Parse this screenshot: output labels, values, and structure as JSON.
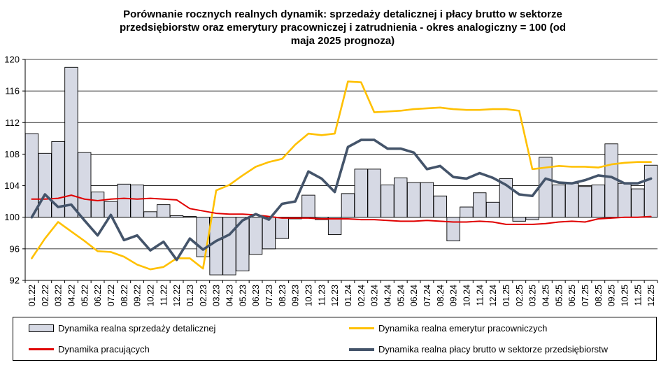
{
  "chart_data": {
    "type": "bar",
    "title": "Porównanie rocznych realnych dynamik: sprzedaży detalicznej i płacy brutto w sektorze przedsiębiorstw oraz emerytury pracowniczej i zatrudnienia - okres analogiczny = 100 (od maja 2025 prognoza)",
    "title_lines": [
      "Porównanie rocznych realnych dynamik: sprzedaży detalicznej i płacy brutto w sektorze",
      "przedsiębiorstw oraz emerytury pracowniczej i zatrudnienia - okres analogiczny = 100 (od",
      "maja 2025 prognoza)"
    ],
    "xlabel": "",
    "ylabel": "",
    "ylim": [
      92,
      120
    ],
    "yticks": [
      92,
      96,
      100,
      104,
      108,
      112,
      116,
      120
    ],
    "grid": true,
    "legend_position": "bottom",
    "categories": [
      "01.22",
      "02.22",
      "03.22",
      "04.22",
      "05.22",
      "06.22",
      "07.22",
      "08.22",
      "09.22",
      "10.22",
      "11.22",
      "12.22",
      "01.23",
      "02.23",
      "03.23",
      "04.23",
      "05.23",
      "06.23",
      "07.23",
      "08.23",
      "09.23",
      "10.23",
      "11.23",
      "12.23",
      "01.24",
      "02.24",
      "03.24",
      "04.24",
      "05.24",
      "06.24",
      "07.24",
      "08.24",
      "09.24",
      "10.24",
      "11.24",
      "12.24",
      "01.25",
      "02.25",
      "03.25",
      "04.25",
      "05.25",
      "06.25",
      "07.25",
      "08.25",
      "09.25",
      "10.25",
      "11.25",
      "12.25"
    ],
    "series": [
      {
        "name": "Dynamika realna sprzedaży detalicznej",
        "type": "bar",
        "color": "#d6d9e4",
        "values": [
          110.6,
          108.1,
          109.6,
          119.0,
          108.2,
          103.2,
          102.0,
          104.2,
          104.1,
          100.7,
          101.6,
          100.2,
          100.1,
          95.0,
          92.7,
          92.7,
          93.2,
          95.3,
          96.0,
          97.3,
          99.8,
          102.8,
          99.7,
          97.8,
          103.0,
          106.1,
          106.1,
          104.1,
          105.0,
          104.4,
          104.4,
          102.7,
          97.0,
          101.3,
          103.1,
          101.9,
          104.9,
          99.5,
          99.7,
          107.6,
          104.1,
          104.3,
          103.9,
          104.1,
          109.3,
          104.3,
          103.6,
          106.6
        ]
      },
      {
        "name": "Dynamika realna emerytur pracowniczych",
        "type": "line",
        "color": "#ffc000",
        "values": [
          94.8,
          97.3,
          99.4,
          98.2,
          97.0,
          95.7,
          95.6,
          95.0,
          94.0,
          93.4,
          93.7,
          94.8,
          94.8,
          93.5,
          103.4,
          104.1,
          105.3,
          106.4,
          107.0,
          107.4,
          109.2,
          110.6,
          110.4,
          110.6,
          117.2,
          117.1,
          113.3,
          113.4,
          113.5,
          113.7,
          113.8,
          113.9,
          113.7,
          113.6,
          113.6,
          113.7,
          113.7,
          113.5,
          106.1,
          106.3,
          106.5,
          106.4,
          106.4,
          106.3,
          106.7,
          106.9,
          107.0,
          107.0
        ]
      },
      {
        "name": "Dynamika pracujących",
        "type": "line",
        "color": "#e00000",
        "values": [
          102.3,
          102.3,
          102.4,
          102.8,
          102.3,
          102.1,
          102.3,
          102.4,
          102.3,
          102.4,
          102.3,
          102.2,
          101.1,
          100.8,
          100.5,
          100.4,
          100.4,
          100.3,
          100.1,
          99.9,
          99.9,
          99.9,
          99.8,
          99.8,
          99.8,
          99.7,
          99.7,
          99.6,
          99.5,
          99.5,
          99.6,
          99.5,
          99.4,
          99.4,
          99.5,
          99.4,
          99.1,
          99.1,
          99.1,
          99.2,
          99.4,
          99.5,
          99.4,
          99.8,
          99.9,
          100.0,
          100.0,
          100.1
        ]
      },
      {
        "name": "Dynamika realna płacy brutto w sektorze przedsiębiorstw",
        "type": "line",
        "color": "#44546a",
        "values": [
          100.0,
          102.9,
          101.3,
          101.6,
          99.6,
          97.7,
          100.3,
          97.1,
          97.7,
          95.8,
          96.9,
          94.6,
          97.3,
          95.9,
          97.0,
          97.8,
          99.6,
          100.4,
          99.7,
          101.7,
          102.0,
          105.8,
          104.9,
          103.2,
          108.9,
          109.8,
          109.8,
          108.7,
          108.7,
          108.2,
          106.1,
          106.5,
          105.1,
          104.9,
          105.6,
          105.0,
          104.1,
          102.9,
          102.7,
          104.9,
          104.4,
          104.3,
          104.7,
          105.3,
          105.1,
          104.3,
          104.3,
          104.9
        ]
      }
    ]
  }
}
